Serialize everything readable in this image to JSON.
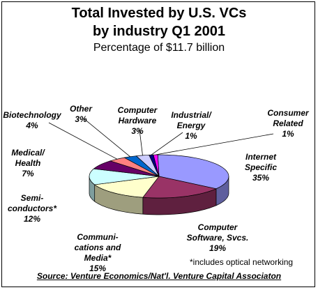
{
  "chart_data": {
    "type": "pie",
    "title": "Total Invested by U.S. VCs",
    "title_line2": "by industry Q1 2001",
    "subtitle": "Percentage of $11.7 billion",
    "slices": [
      {
        "label": "Internet Specific",
        "line1": "Internet",
        "line2": "Specific",
        "value": 35,
        "value_label": "35%",
        "color": "#9999FF"
      },
      {
        "label": "Computer Software, Svcs.",
        "line1": "Computer",
        "line2": "Software, Svcs.",
        "value": 19,
        "value_label": "19%",
        "color": "#993366"
      },
      {
        "label": "Communications and Media*",
        "line1": "Communi-",
        "line2": "cations and",
        "line3": "Media*",
        "value": 15,
        "value_label": "15%",
        "color": "#FFFFCC"
      },
      {
        "label": "Semiconductors*",
        "line1": "Semi-",
        "line2": "conductors*",
        "value": 12,
        "value_label": "12%",
        "color": "#CCFFFF"
      },
      {
        "label": "Medical/ Health",
        "line1": "Medical/",
        "line2": "Health",
        "value": 7,
        "value_label": "7%",
        "color": "#660066"
      },
      {
        "label": "Biotechnology",
        "line1": "Biotechnology",
        "value": 4,
        "value_label": "4%",
        "color": "#FF8080"
      },
      {
        "label": "Other",
        "line1": "Other",
        "value": 3,
        "value_label": "3%",
        "color": "#0066CC"
      },
      {
        "label": "Computer Hardware",
        "line1": "Computer",
        "line2": "Hardware",
        "value": 3,
        "value_label": "3%",
        "color": "#CCCCFF"
      },
      {
        "label": "Industrial/ Energy",
        "line1": "Industrial/",
        "line2": "Energy",
        "value": 1,
        "value_label": "1%",
        "color": "#000080"
      },
      {
        "label": "Consumer Related",
        "line1": "Consumer",
        "line2": "Related",
        "value": 1,
        "value_label": "1%",
        "color": "#FF00FF"
      }
    ]
  },
  "footnote": "*includes optical networking",
  "source": "Source: Venture Economics/Nat'l. Venture Capital Associaton"
}
